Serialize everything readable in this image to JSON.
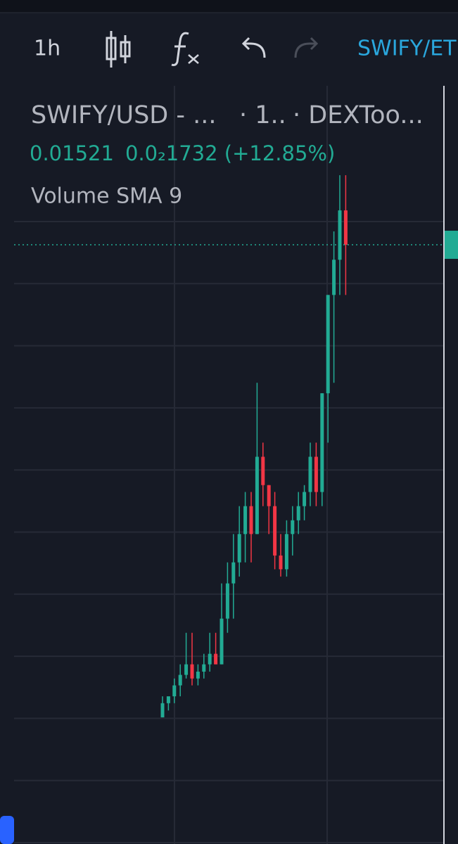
{
  "toolbar": {
    "interval": "1h",
    "symbol": "SWIFY/ET"
  },
  "legend": {
    "symbol": "SWIFY/USD - ...",
    "interval": "· 1..",
    "source": "· DEXToo...",
    "price": "0.01521",
    "change": "0.0₂1732 (+12.85%)",
    "indicator": "Volume SMA 9"
  },
  "chart_data": {
    "type": "candlestick",
    "ylim": [
      0.0004,
      0.019
    ],
    "colors": {
      "up": "#22ab94",
      "down": "#f23645"
    },
    "ohlc": [
      [
        0.00353,
        0.00405,
        0.00353,
        0.00388
      ],
      [
        0.00388,
        0.00405,
        0.0037,
        0.00405
      ],
      [
        0.00405,
        0.00449,
        0.00388,
        0.00432
      ],
      [
        0.00432,
        0.00484,
        0.00405,
        0.00458
      ],
      [
        0.00458,
        0.00562,
        0.00449,
        0.00484
      ],
      [
        0.00484,
        0.00562,
        0.00432,
        0.00449
      ],
      [
        0.00449,
        0.00484,
        0.00432,
        0.00466
      ],
      [
        0.00466,
        0.0051,
        0.00449,
        0.00484
      ],
      [
        0.00484,
        0.00562,
        0.00466,
        0.0051
      ],
      [
        0.0051,
        0.00562,
        0.00484,
        0.00484
      ],
      [
        0.00484,
        0.00684,
        0.00484,
        0.00597
      ],
      [
        0.00597,
        0.00736,
        0.00562,
        0.00684
      ],
      [
        0.00684,
        0.00806,
        0.00597,
        0.00736
      ],
      [
        0.00736,
        0.00875,
        0.00701,
        0.00806
      ],
      [
        0.00806,
        0.0091,
        0.00736,
        0.00875
      ],
      [
        0.00875,
        0.0091,
        0.00736,
        0.00806
      ],
      [
        0.00806,
        0.0118,
        0.00806,
        0.00997
      ],
      [
        0.00997,
        0.01032,
        0.00875,
        0.00927
      ],
      [
        0.00927,
        0.00927,
        0.00806,
        0.00875
      ],
      [
        0.00875,
        0.0091,
        0.00719,
        0.00753
      ],
      [
        0.00753,
        0.00806,
        0.00701,
        0.00719
      ],
      [
        0.00719,
        0.0084,
        0.00701,
        0.00806
      ],
      [
        0.00806,
        0.00875,
        0.00753,
        0.0084
      ],
      [
        0.0084,
        0.0091,
        0.00806,
        0.00875
      ],
      [
        0.00875,
        0.00927,
        0.0084,
        0.0091
      ],
      [
        0.0091,
        0.01032,
        0.00875,
        0.00997
      ],
      [
        0.00997,
        0.01032,
        0.00875,
        0.0091
      ],
      [
        0.0091,
        0.01154,
        0.00875,
        0.01154
      ],
      [
        0.01154,
        0.01397,
        0.01032,
        0.01397
      ],
      [
        0.01397,
        0.01554,
        0.0118,
        0.01484
      ],
      [
        0.01484,
        0.01693,
        0.01397,
        0.01606
      ],
      [
        0.01606,
        0.01693,
        0.01397,
        0.01521
      ]
    ]
  }
}
